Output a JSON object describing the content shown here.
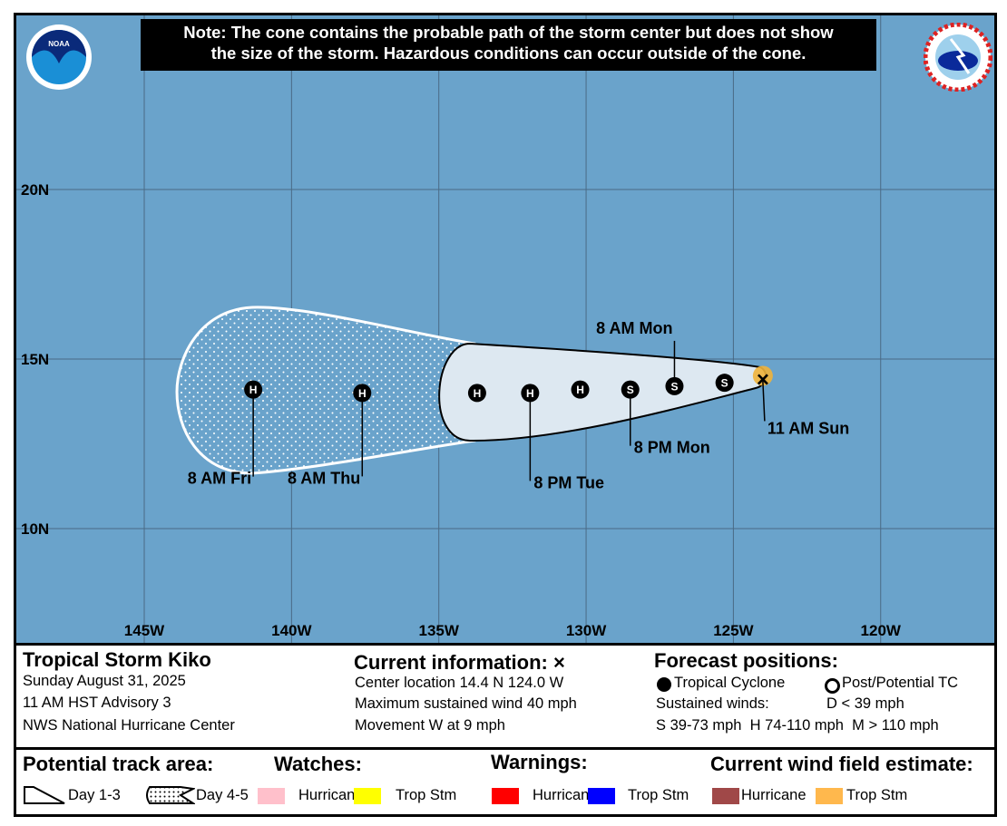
{
  "note": {
    "line1": "Note: The cone contains the probable path of the storm center but does not show",
    "line2": "the size of the storm. Hazardous conditions can occur outside of the cone."
  },
  "logos": {
    "left": "NOAA",
    "right": "NATIONAL WEATHER SERVICE"
  },
  "map": {
    "ocean_color": "#6aa3cb",
    "cone_day13_color": "#dde8f1",
    "wind_field_color": "#f0b23a",
    "lat_labels": [
      "20N",
      "15N",
      "10N"
    ],
    "lon_labels": [
      "145W",
      "140W",
      "135W",
      "130W",
      "125W",
      "120W"
    ],
    "current": {
      "lat": 14.4,
      "lon": 124.0,
      "label": "11 AM Sun"
    },
    "forecast_points": [
      {
        "lon": 125.3,
        "lat": 14.3,
        "type": "S",
        "label": ""
      },
      {
        "lon": 127.0,
        "lat": 14.2,
        "type": "S",
        "label": "8 AM Mon"
      },
      {
        "lon": 128.5,
        "lat": 14.1,
        "type": "S",
        "label": "8 PM Mon"
      },
      {
        "lon": 130.2,
        "lat": 14.1,
        "type": "H",
        "label": ""
      },
      {
        "lon": 131.9,
        "lat": 14.0,
        "type": "H",
        "label": "8 PM Tue"
      },
      {
        "lon": 133.7,
        "lat": 14.0,
        "type": "H",
        "label": ""
      },
      {
        "lon": 137.6,
        "lat": 14.0,
        "type": "H",
        "label": "8 AM Thu"
      },
      {
        "lon": 141.3,
        "lat": 14.1,
        "type": "H",
        "label": "8 AM Fri"
      }
    ]
  },
  "info": {
    "storm": "Tropical Storm Kiko",
    "date": "Sunday August 31, 2025",
    "advisory": "11 AM HST Advisory 3",
    "center": "NWS National Hurricane Center",
    "current_title": "Current information: ×",
    "location": "Center location 14.4 N 124.0 W",
    "wind": "Maximum sustained wind 40 mph",
    "movement": "Movement W at 9 mph",
    "forecast_title": "Forecast positions:",
    "tc": "Tropical Cyclone",
    "ptc": "Post/Potential TC",
    "sustained": "Sustained winds:",
    "d": "D < 39 mph",
    "scale": "S 39-73 mph  H 74-110 mph  M > 110 mph"
  },
  "legend": {
    "track_title": "Potential track area:",
    "day13": "Day 1-3",
    "day45": "Day 4-5",
    "watches_title": "Watches:",
    "warnings_title": "Warnings:",
    "wind_title": "Current wind field estimate:",
    "hurricane": "Hurricane",
    "tropstm": "Trop Stm",
    "colors": {
      "watch_hurricane": "#ffc0cb",
      "watch_trop": "#ffff00",
      "warn_hurricane": "#ff0000",
      "warn_trop": "#0000ff",
      "wind_hurricane": "#a04848",
      "wind_trop": "#ffb84d"
    }
  }
}
